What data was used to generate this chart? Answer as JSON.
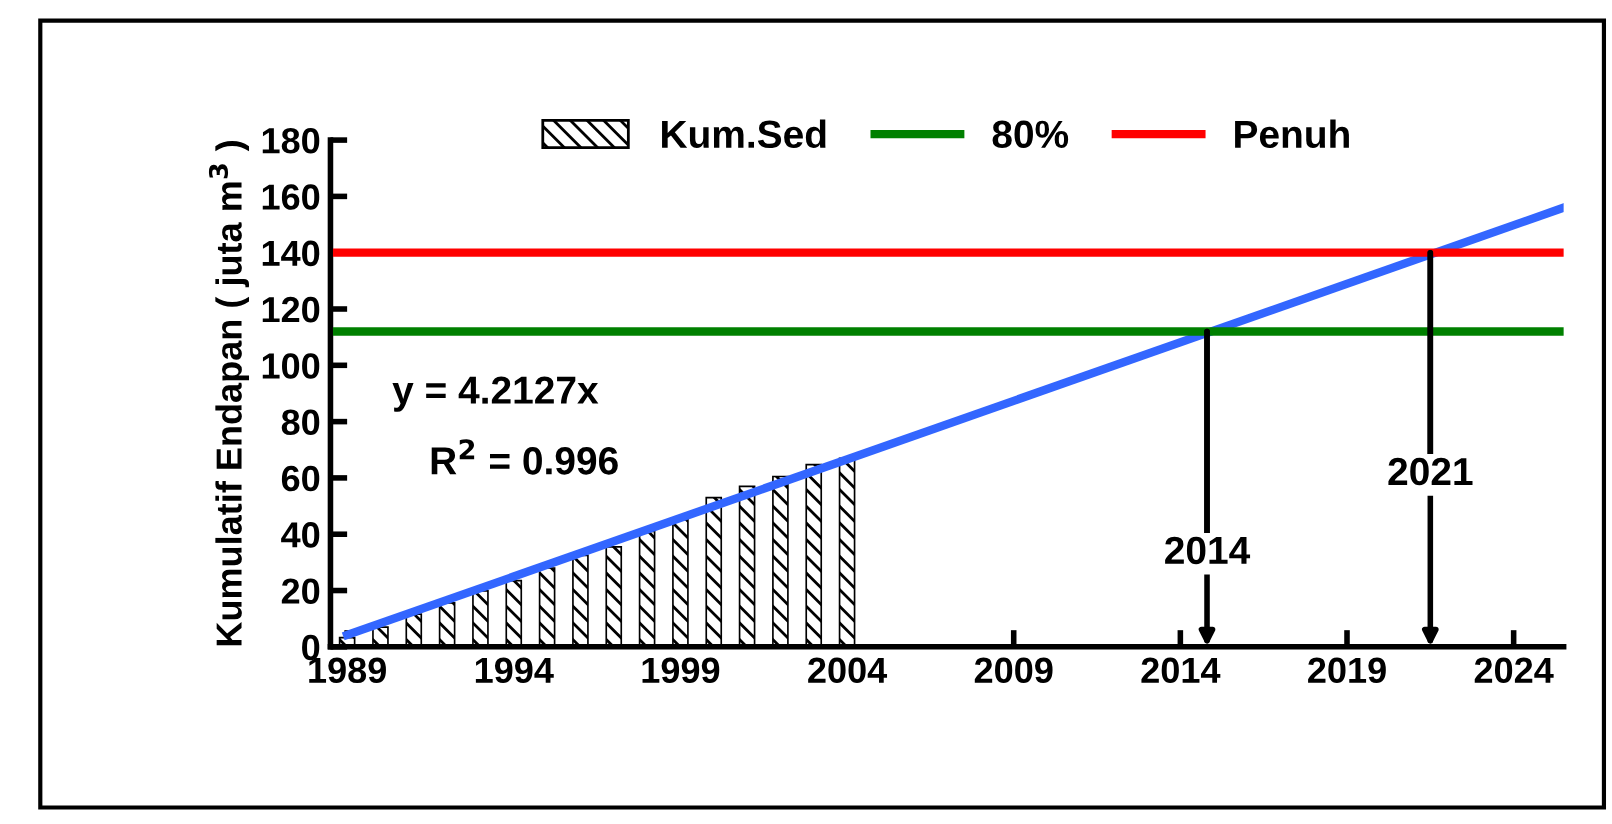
{
  "chart_data": {
    "type": "bar",
    "ylabel": "Kumulatif Endapan ( juta m$^{3}$ )",
    "x": [
      1989,
      1990,
      1991,
      1992,
      1993,
      1994,
      1995,
      1996,
      1997,
      1998,
      1999,
      2000,
      2001,
      2002,
      2003,
      2004
    ],
    "series": [
      {
        "name": "Kum.Sed",
        "color": "#000000",
        "values": [
          3.3,
          7,
          11.6,
          15.6,
          19.9,
          23.5,
          28,
          32.5,
          35.5,
          41,
          45.3,
          53,
          57,
          60.5,
          64.7,
          67
        ]
      },
      {
        "type": "line",
        "color": "#3366ff",
        "x": [
          1989,
          2025.5
        ],
        "values": [
          4.2,
          156
        ]
      },
      {
        "name": "80%",
        "type": "line",
        "color": "#008000",
        "x": [
          1988.7,
          2025.5
        ],
        "values": [
          112,
          112
        ]
      },
      {
        "name": "Penuh",
        "type": "line",
        "color": "#ff0000",
        "x": [
          1988.7,
          2025.5
        ],
        "values": [
          140,
          140
        ]
      }
    ],
    "annotations": [
      "y = 4.2127x",
      "R$^{2}$ = 0.996",
      {
        "text": "2014",
        "x": 2014.8,
        "y": 112
      },
      {
        "text": "2021",
        "x": 2021.5,
        "y": 140
      }
    ],
    "xlim": [
      1988.5,
      2025.5
    ],
    "xticks": [
      1989,
      1994,
      1999,
      2004,
      2009,
      2014,
      2019,
      2024
    ],
    "ylim": [
      0,
      180
    ],
    "yticks": [
      0,
      20,
      40,
      60,
      80,
      100,
      120,
      140,
      160,
      180
    ],
    "grid": false,
    "legend": "top",
    "marker": "none",
    "line_style": "solid"
  }
}
